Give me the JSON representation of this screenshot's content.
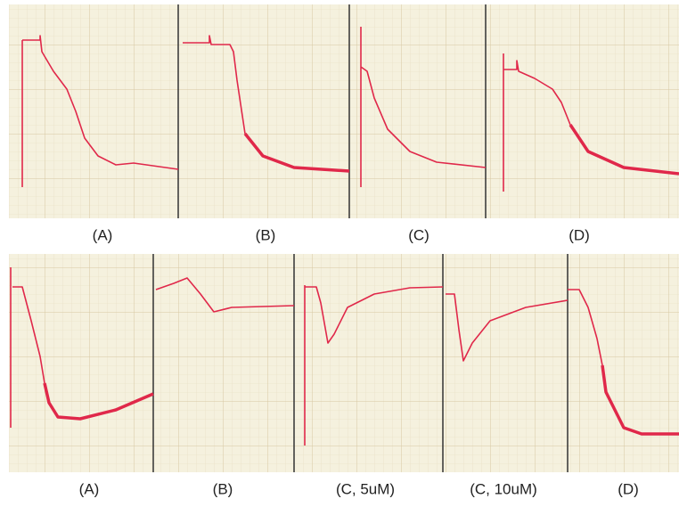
{
  "top_row": {
    "labels": [
      "(A)",
      "(B)",
      "(C)",
      "(D)"
    ]
  },
  "bottom_row": {
    "labels": [
      "(A)",
      "(B)",
      "(C, 5uM)",
      "(C, 10uM)",
      "(D)"
    ]
  }
}
